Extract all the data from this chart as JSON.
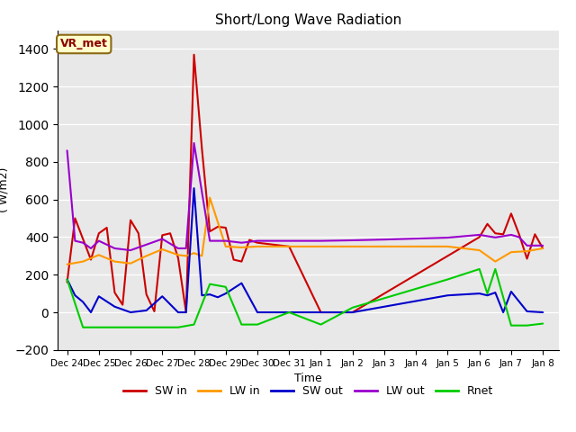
{
  "title": "Short/Long Wave Radiation",
  "xlabel": "Time",
  "ylabel": "( W/m2)",
  "ylim": [
    -200,
    1500
  ],
  "yticks": [
    -200,
    0,
    200,
    400,
    600,
    800,
    1000,
    1200,
    1400
  ],
  "annotation": "VR_met",
  "bg_color": "#e8e8e8",
  "x_labels": [
    "Dec 24",
    "Dec 25",
    "Dec 26",
    "Dec 27",
    "Dec 28",
    "Dec 29",
    "Dec 30",
    "Dec 31",
    "Jan 1",
    "Jan 2",
    "Jan 3",
    "Jan 4",
    "Jan 5",
    "Jan 6",
    "Jan 7",
    "Jan 8"
  ],
  "x_values": [
    0,
    1,
    2,
    3,
    4,
    5,
    6,
    7,
    8,
    9,
    10,
    11,
    12,
    13,
    14,
    15
  ],
  "series": {
    "SW in": {
      "color": "#cc0000",
      "data_x": [
        0,
        0.25,
        0.5,
        0.75,
        1.0,
        1.25,
        1.5,
        1.75,
        2.0,
        2.25,
        2.5,
        2.75,
        3.0,
        3.25,
        3.5,
        3.75,
        4.0,
        4.25,
        4.5,
        4.75,
        5.0,
        5.25,
        5.5,
        5.75,
        6.0,
        7.0,
        8.0,
        9.0,
        10.0,
        11.0,
        12.0,
        13.0,
        13.25,
        13.5,
        13.75,
        14.0,
        14.25,
        14.5,
        14.75,
        15.0
      ],
      "data_y": [
        160,
        500,
        390,
        280,
        420,
        450,
        105,
        40,
        490,
        420,
        95,
        5,
        410,
        420,
        290,
        0,
        1370,
        870,
        430,
        455,
        450,
        280,
        270,
        385,
        370,
        350,
        0,
        0,
        100,
        200,
        300,
        400,
        470,
        420,
        415,
        525,
        415,
        285,
        415,
        340
      ]
    },
    "LW in": {
      "color": "#ff9900",
      "data_x": [
        0,
        0.5,
        1.0,
        1.5,
        2.0,
        2.5,
        3.0,
        3.5,
        3.75,
        4.0,
        4.25,
        4.5,
        5.0,
        5.5,
        6.0,
        7.0,
        8.0,
        9.0,
        10.0,
        11.0,
        12.0,
        13.0,
        13.5,
        14.0,
        14.5,
        15.0
      ],
      "data_y": [
        255,
        270,
        305,
        270,
        260,
        300,
        335,
        305,
        300,
        315,
        300,
        610,
        350,
        345,
        350,
        350,
        350,
        350,
        350,
        350,
        350,
        330,
        270,
        320,
        325,
        340
      ]
    },
    "SW out": {
      "color": "#0000cc",
      "data_x": [
        0,
        0.25,
        0.5,
        0.75,
        1.0,
        1.5,
        2.0,
        2.5,
        3.0,
        3.5,
        3.75,
        4.0,
        4.25,
        4.5,
        4.75,
        5.0,
        5.5,
        6.0,
        7.0,
        8.0,
        9.0,
        10.0,
        11.0,
        12.0,
        13.0,
        13.25,
        13.5,
        13.75,
        14.0,
        14.5,
        15.0
      ],
      "data_y": [
        175,
        90,
        55,
        0,
        85,
        30,
        0,
        10,
        85,
        0,
        0,
        660,
        90,
        95,
        80,
        100,
        155,
        0,
        0,
        0,
        0,
        30,
        60,
        90,
        100,
        90,
        105,
        0,
        110,
        5,
        0
      ]
    },
    "LW out": {
      "color": "#9900cc",
      "data_x": [
        0,
        0.25,
        0.5,
        0.75,
        1.0,
        1.5,
        2.0,
        2.5,
        3.0,
        3.5,
        3.75,
        4.0,
        4.5,
        5.0,
        5.5,
        6.0,
        7.0,
        8.0,
        9.0,
        10.0,
        11.0,
        12.0,
        13.0,
        13.5,
        14.0,
        14.25,
        14.5,
        15.0
      ],
      "data_y": [
        860,
        380,
        370,
        340,
        380,
        340,
        330,
        360,
        390,
        340,
        340,
        900,
        380,
        380,
        370,
        380,
        380,
        380,
        383,
        387,
        392,
        397,
        412,
        398,
        412,
        400,
        355,
        355
      ]
    },
    "Rnet": {
      "color": "#00cc00",
      "data_x": [
        0,
        0.5,
        1.0,
        1.5,
        2.0,
        2.5,
        3.0,
        3.5,
        4.0,
        4.5,
        5.0,
        5.5,
        6.0,
        7.0,
        8.0,
        9.0,
        10.0,
        11.0,
        12.0,
        13.0,
        13.25,
        13.5,
        14.0,
        14.5,
        15.0
      ],
      "data_y": [
        175,
        -80,
        -80,
        -80,
        -80,
        -80,
        -80,
        -80,
        -65,
        150,
        135,
        -65,
        -65,
        0,
        -65,
        25,
        75,
        125,
        175,
        230,
        100,
        230,
        -70,
        -70,
        -60
      ]
    }
  }
}
